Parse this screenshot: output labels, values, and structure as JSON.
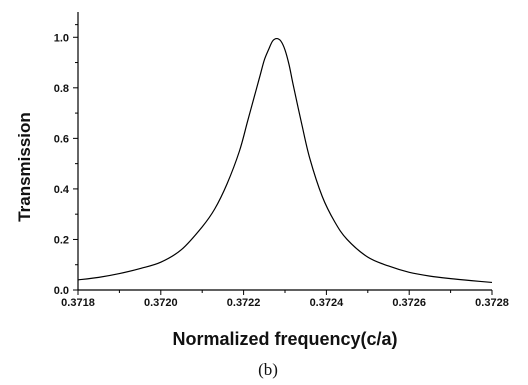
{
  "chart_data": {
    "type": "line",
    "xlabel": "Normalized frequency(c/a)",
    "ylabel": "Transmission",
    "caption": "(b)",
    "xlim": [
      0.3718,
      0.3728
    ],
    "ylim": [
      0.0,
      1.1
    ],
    "x_ticks": [
      "0.3718",
      "0.3720",
      "0.3722",
      "0.3724",
      "0.3726",
      "0.3728"
    ],
    "y_ticks": [
      "0.0",
      "0.2",
      "0.4",
      "0.6",
      "0.8",
      "1.0"
    ],
    "grid": false,
    "line_color": "#000000",
    "series": [
      {
        "x": [
          0.3718,
          0.37185,
          0.3719,
          0.37195,
          0.372,
          0.37205,
          0.3721,
          0.37213,
          0.37216,
          0.37219,
          0.37221,
          0.37223,
          0.37224,
          0.37225,
          0.37226,
          0.37227,
          0.37228,
          0.37229,
          0.3723,
          0.37231,
          0.37232,
          0.37234,
          0.37236,
          0.37239,
          0.37242,
          0.37245,
          0.3725,
          0.37255,
          0.3726,
          0.37265,
          0.3727,
          0.37275,
          0.3728
        ],
        "y": [
          0.04,
          0.05,
          0.065,
          0.085,
          0.11,
          0.16,
          0.25,
          0.32,
          0.42,
          0.55,
          0.67,
          0.79,
          0.85,
          0.91,
          0.95,
          0.985,
          0.995,
          0.985,
          0.95,
          0.89,
          0.81,
          0.66,
          0.52,
          0.37,
          0.27,
          0.2,
          0.13,
          0.095,
          0.07,
          0.055,
          0.045,
          0.037,
          0.03
        ]
      }
    ]
  }
}
